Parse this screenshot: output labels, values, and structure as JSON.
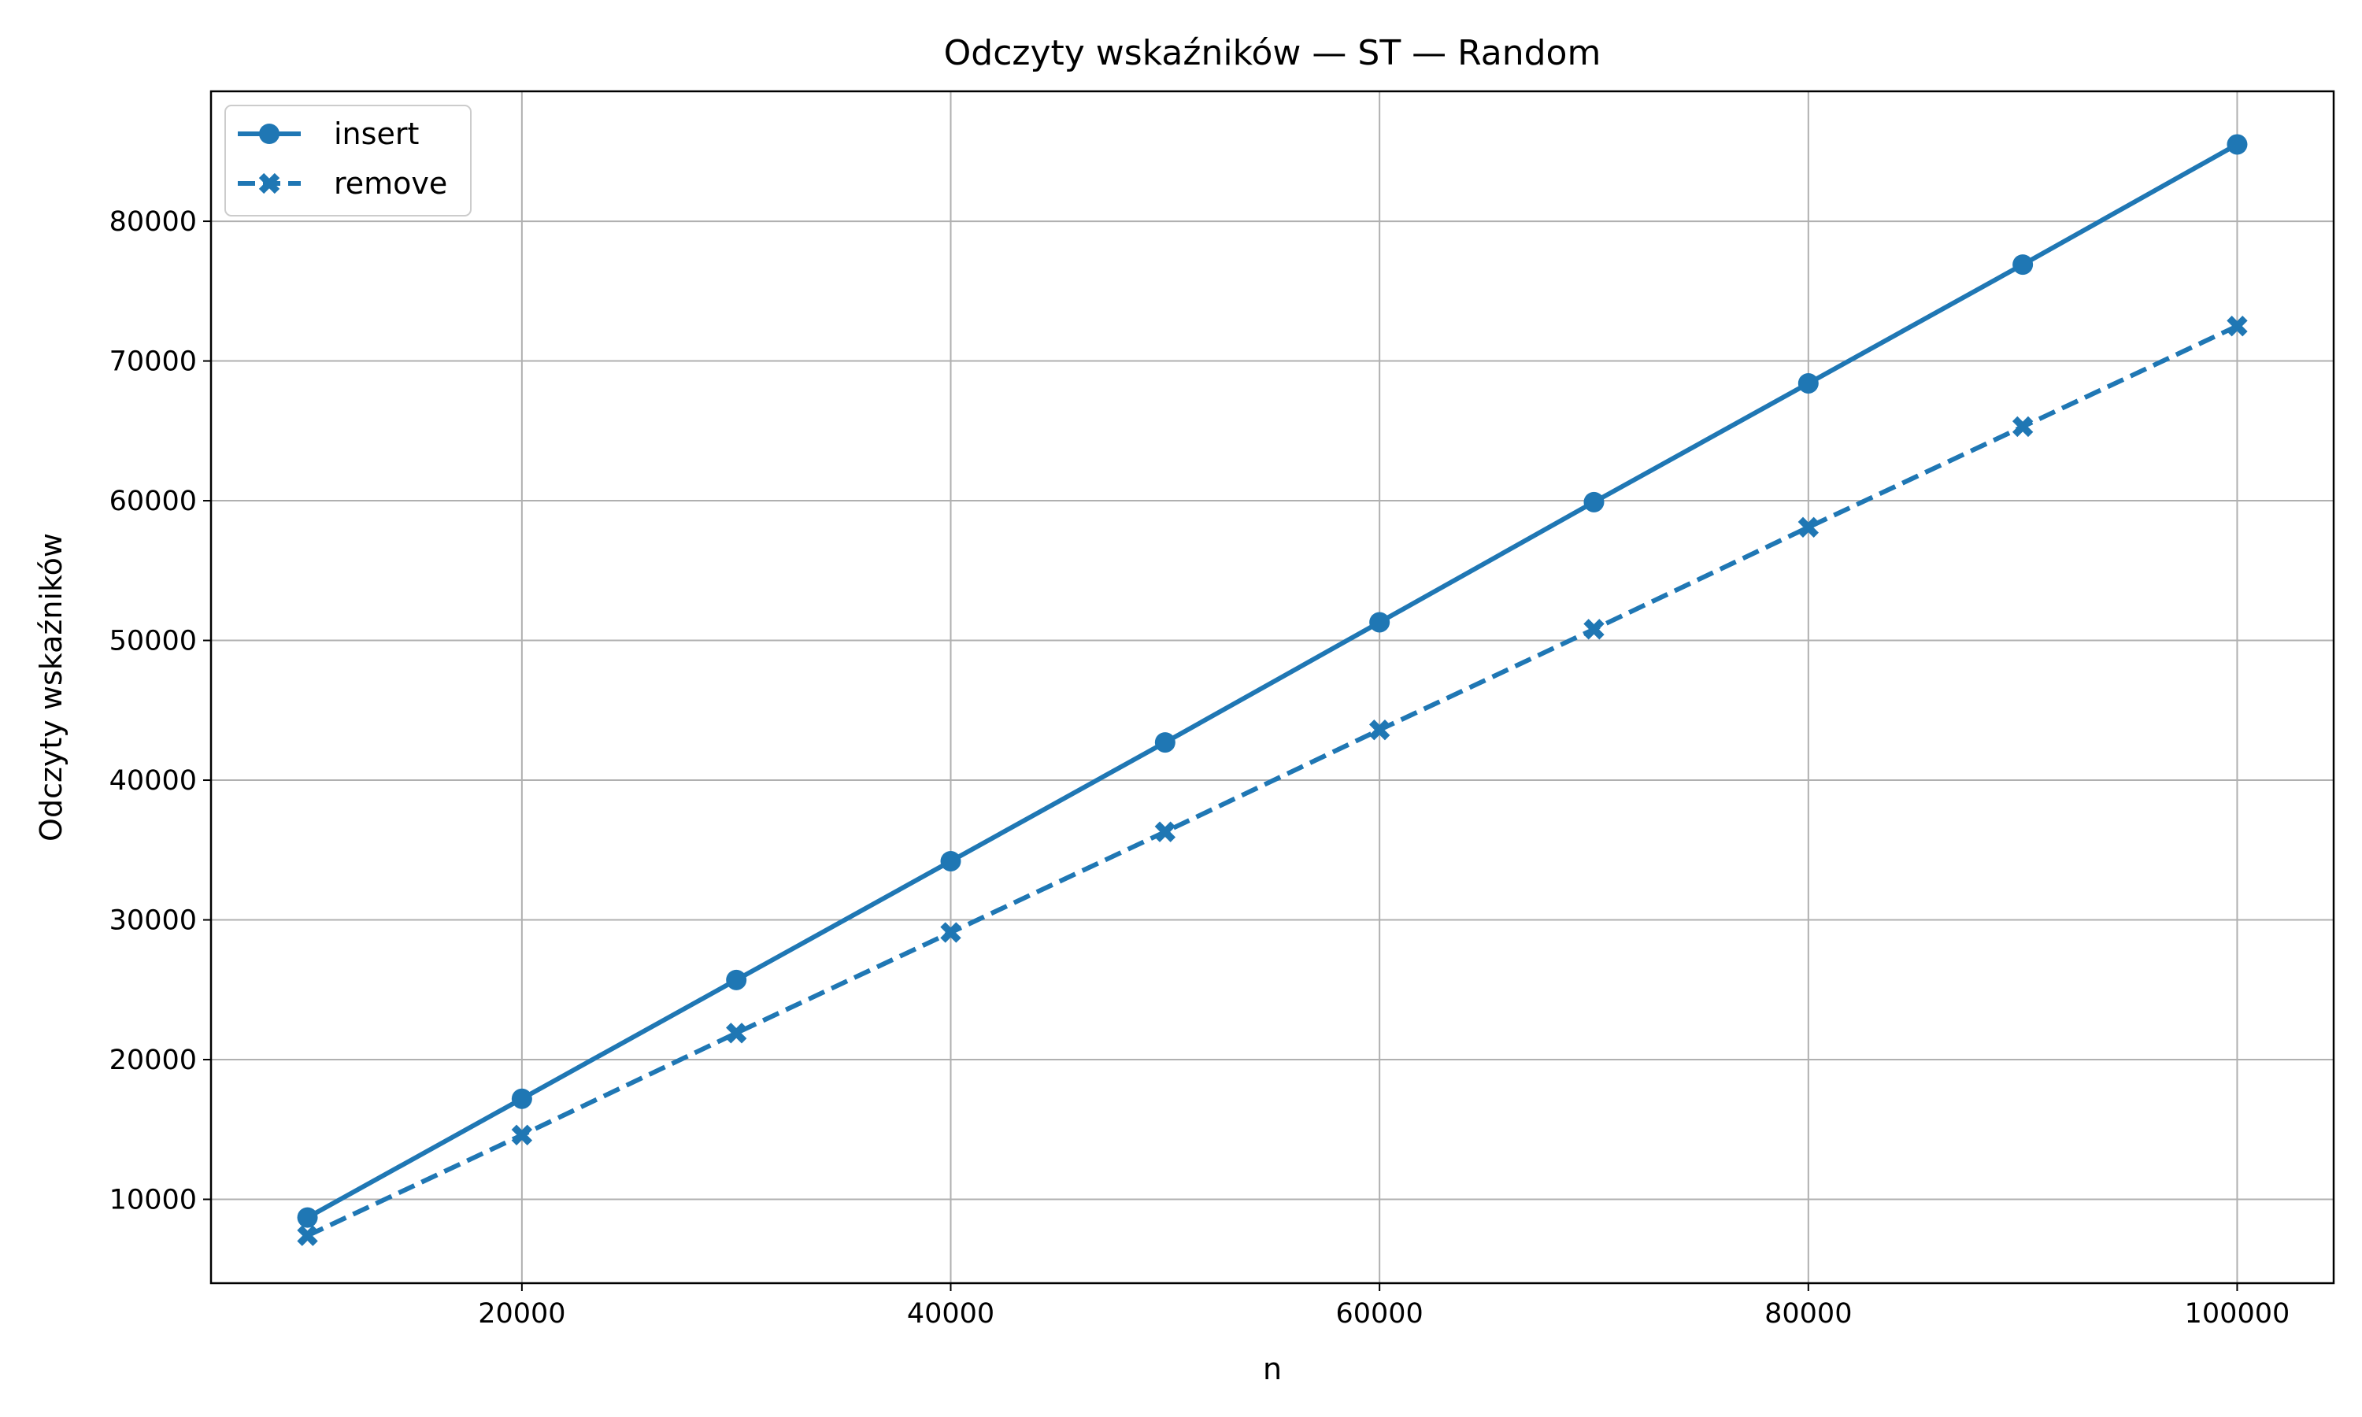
{
  "chart_data": {
    "type": "line",
    "title": "Odczyty wskaźników — ST — Random",
    "xlabel": "n",
    "ylabel": "Odczyty wskaźników",
    "x": [
      10000,
      20000,
      30000,
      40000,
      50000,
      60000,
      70000,
      80000,
      90000,
      100000
    ],
    "series": [
      {
        "name": "insert",
        "values": [
          8700,
          17200,
          25700,
          34200,
          42700,
          51300,
          59900,
          68400,
          76900,
          85500
        ],
        "line_style": "solid",
        "marker": "circle",
        "color": "#1f77b4"
      },
      {
        "name": "remove",
        "values": [
          7400,
          14600,
          21900,
          29100,
          36300,
          43600,
          50800,
          58100,
          65300,
          72500
        ],
        "line_style": "dashed",
        "marker": "x-filled",
        "color": "#1f77b4"
      }
    ],
    "xlim": [
      5500,
      104500
    ],
    "ylim": [
      4000,
      89300
    ],
    "xticks": [
      20000,
      40000,
      60000,
      80000,
      100000
    ],
    "yticks": [
      10000,
      20000,
      30000,
      40000,
      50000,
      60000,
      70000,
      80000
    ],
    "grid": true,
    "legend_position": "top-left"
  }
}
